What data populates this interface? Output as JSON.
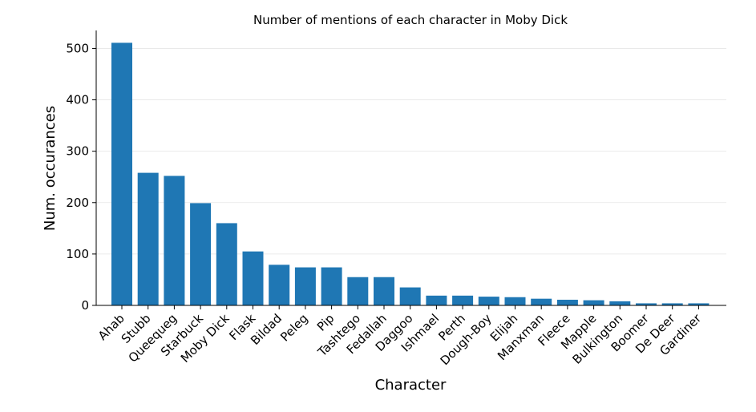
{
  "chart_data": {
    "type": "bar",
    "title": "Number of mentions of each character in Moby Dick",
    "xlabel": "Character",
    "ylabel": "Num. occurances",
    "ylim": [
      0,
      535
    ],
    "yticks": [
      0,
      100,
      200,
      300,
      400,
      500
    ],
    "grid": "horizontal",
    "bar_color": "#1f77b4",
    "categories": [
      "Ahab",
      "Stubb",
      "Queequeg",
      "Starbuck",
      "Moby Dick",
      "Flask",
      "Bildad",
      "Peleg",
      "Pip",
      "Tashtego",
      "Fedallah",
      "Daggoo",
      "Ishmael",
      "Perth",
      "Dough-Boy",
      "Elijah",
      "Manxman",
      "Fleece",
      "Mapple",
      "Bulkington",
      "Boomer",
      "De Deer",
      "Gardiner"
    ],
    "values": [
      511,
      258,
      252,
      199,
      160,
      105,
      79,
      74,
      74,
      55,
      55,
      35,
      19,
      19,
      17,
      16,
      13,
      11,
      10,
      8,
      4,
      4,
      4
    ]
  }
}
